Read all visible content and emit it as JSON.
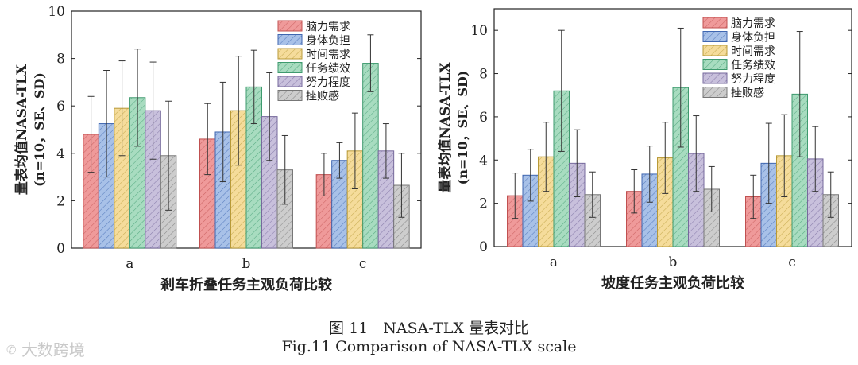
{
  "chart_data": [
    {
      "type": "bar",
      "title": "",
      "xlabel": "剎车折叠任务主观负荷比较",
      "ylabel": "量表均值NASA-TLX",
      "ylabel_sub": "(n=10，SE、SD)",
      "ylim": [
        0,
        10
      ],
      "yticks": [
        "0",
        "2",
        "4",
        "6",
        "8",
        "10"
      ],
      "categories": [
        "a",
        "b",
        "c"
      ],
      "legend_position": "top-right",
      "series": [
        {
          "name": "脑力需求",
          "values": [
            4.8,
            4.6,
            3.1
          ],
          "err": [
            1.6,
            1.5,
            0.9
          ]
        },
        {
          "name": "身体负担",
          "values": [
            5.25,
            4.9,
            3.7
          ],
          "err": [
            2.25,
            2.1,
            0.75
          ]
        },
        {
          "name": "时间需求",
          "values": [
            5.9,
            5.8,
            4.1
          ],
          "err": [
            2.0,
            2.3,
            1.6
          ]
        },
        {
          "name": "任务绩效",
          "values": [
            6.35,
            6.8,
            7.8
          ],
          "err": [
            2.05,
            1.55,
            1.2
          ]
        },
        {
          "name": "努力程度",
          "values": [
            5.8,
            5.55,
            4.1
          ],
          "err": [
            2.05,
            1.85,
            1.15
          ]
        },
        {
          "name": "挫败感",
          "values": [
            3.9,
            3.3,
            2.65
          ],
          "err": [
            2.3,
            1.45,
            1.35
          ]
        }
      ]
    },
    {
      "type": "bar",
      "title": "",
      "xlabel": "坡度任务主观负荷比较",
      "ylabel": "量表均值NASA-TLX",
      "ylabel_sub": "(n=10，SE、SD)",
      "ylim": [
        0,
        11
      ],
      "yticks": [
        "0",
        "2",
        "4",
        "6",
        "8",
        "10"
      ],
      "categories": [
        "a",
        "b",
        "c"
      ],
      "legend_position": "top-right",
      "series": [
        {
          "name": "脑力需求",
          "values": [
            2.35,
            2.55,
            2.3
          ],
          "err": [
            1.05,
            1.0,
            1.0
          ]
        },
        {
          "name": "身体负担",
          "values": [
            3.3,
            3.35,
            3.85
          ],
          "err": [
            1.2,
            1.3,
            1.85
          ]
        },
        {
          "name": "时间需求",
          "values": [
            4.15,
            4.1,
            4.2
          ],
          "err": [
            1.6,
            1.65,
            1.9
          ]
        },
        {
          "name": "任务绩效",
          "values": [
            7.2,
            7.35,
            7.05
          ],
          "err": [
            2.8,
            2.75,
            2.9
          ]
        },
        {
          "name": "努力程度",
          "values": [
            3.85,
            4.3,
            4.05
          ],
          "err": [
            1.55,
            1.75,
            1.5
          ]
        },
        {
          "name": "挫败感",
          "values": [
            2.4,
            2.65,
            2.4
          ],
          "err": [
            1.05,
            1.05,
            1.05
          ]
        }
      ]
    }
  ],
  "colors": {
    "fills": [
      "#ef9a9a",
      "#a8c1e8",
      "#f5dc9b",
      "#a8dcc0",
      "#c8c0dc",
      "#cdcdcd"
    ],
    "strokes": [
      "#c05050",
      "#3f66b0",
      "#b89a38",
      "#3e9a6e",
      "#76699c",
      "#777777"
    ]
  },
  "caption": {
    "zh": "图 11　NASA-TLX 量表对比",
    "en": "Fig.11 Comparison of NASA-TLX scale"
  },
  "watermark": "大数跨境"
}
